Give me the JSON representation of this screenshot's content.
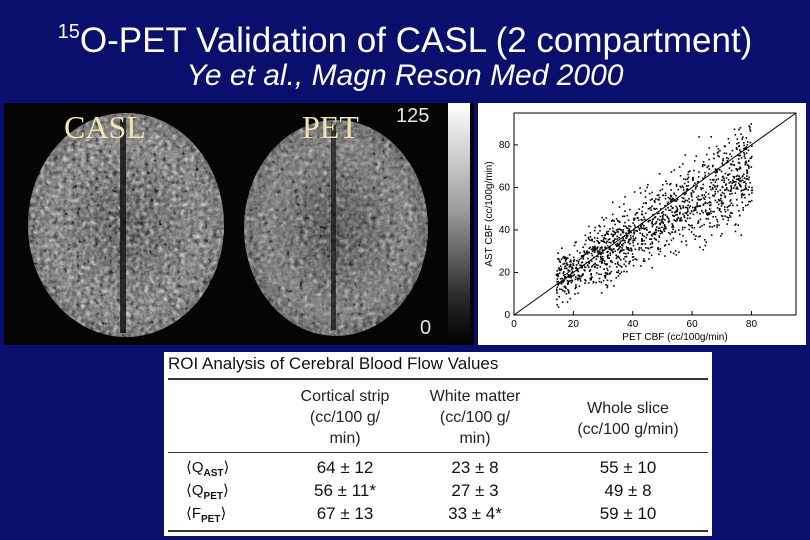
{
  "slide": {
    "title_sup": "15",
    "title_main": "O-PET Validation of CASL (2 compartment)",
    "subtitle": "Ye et al., Magn Reson Med 2000"
  },
  "brain_images": {
    "label_left": "CASL",
    "label_right": "PET",
    "scale_max": "125",
    "scale_min": "0"
  },
  "chart_data": {
    "type": "scatter",
    "xlabel": "PET CBF (cc/100g/min)",
    "ylabel": "AST CBF (cc/100g/min)",
    "xlim": [
      0,
      95
    ],
    "ylim": [
      0,
      95
    ],
    "x_ticks": [
      "0",
      "20",
      "40",
      "60",
      "80"
    ],
    "y_ticks": [
      "0",
      "20",
      "40",
      "60",
      "80"
    ],
    "identity_line": true,
    "point_cloud": {
      "description_points": [
        [
          15,
          18
        ],
        [
          20,
          20
        ],
        [
          25,
          25
        ],
        [
          30,
          30
        ],
        [
          35,
          35
        ],
        [
          40,
          38
        ],
        [
          45,
          45
        ],
        [
          50,
          50
        ],
        [
          55,
          52
        ],
        [
          60,
          58
        ],
        [
          65,
          62
        ],
        [
          70,
          66
        ],
        [
          75,
          68
        ]
      ]
    },
    "grid": false
  },
  "table": {
    "title": "ROI Analysis of Cerebral Blood Flow Values",
    "headers": [
      [
        "Cortical strip",
        "(cc/100 g/",
        "min)"
      ],
      [
        "White matter",
        "(cc/100 g/",
        "min)"
      ],
      [
        "Whole slice",
        "(cc/100 g/min)"
      ]
    ],
    "rows": [
      {
        "label_main": "⟨Q",
        "label_sub": "AST",
        "label_end": "⟩",
        "values": [
          "64 ± 12",
          "23 ± 8",
          "55 ± 10"
        ]
      },
      {
        "label_main": "⟨Q",
        "label_sub": "PET",
        "label_end": "⟩",
        "values": [
          "56 ± 11*",
          "27 ± 3",
          "49 ± 8"
        ]
      },
      {
        "label_main": "⟨F",
        "label_sub": "PET",
        "label_end": "⟩",
        "values": [
          "67 ± 13",
          "33 ± 4*",
          "59 ± 10"
        ]
      }
    ]
  }
}
